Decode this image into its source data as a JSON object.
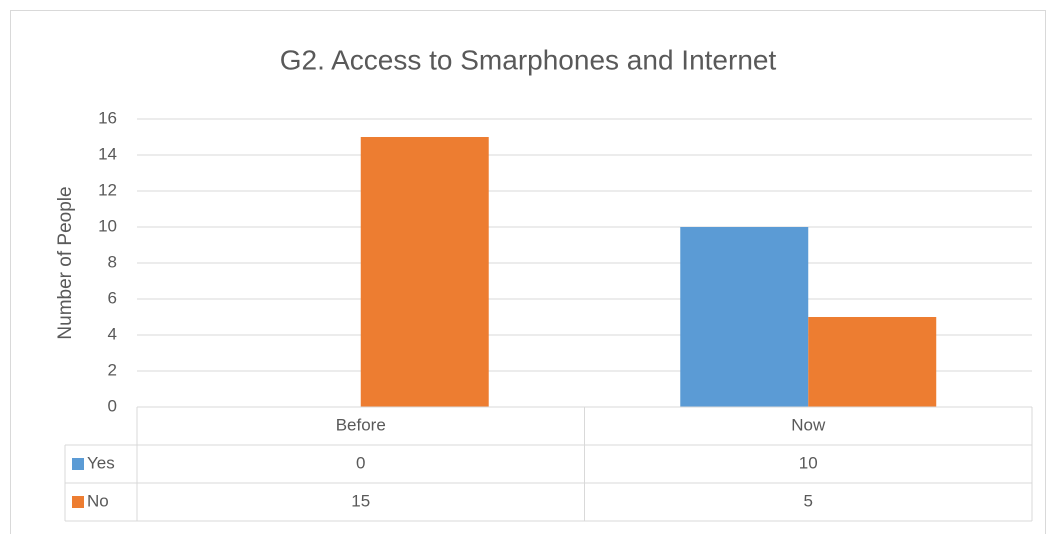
{
  "chart_data": {
    "type": "bar",
    "title": "G2. Access to Smarphones and Internet",
    "y_label": "Number of People",
    "categories": [
      "Before",
      "Now"
    ],
    "series": [
      {
        "name": "Yes",
        "color": "#5b9bd5",
        "values": [
          0,
          10
        ]
      },
      {
        "name": "No",
        "color": "#ed7d31",
        "values": [
          15,
          5
        ]
      }
    ],
    "ylim": [
      0,
      16
    ],
    "yticks": [
      0,
      2,
      4,
      6,
      8,
      10,
      12,
      14,
      16
    ],
    "grid": true,
    "data_table": true
  }
}
